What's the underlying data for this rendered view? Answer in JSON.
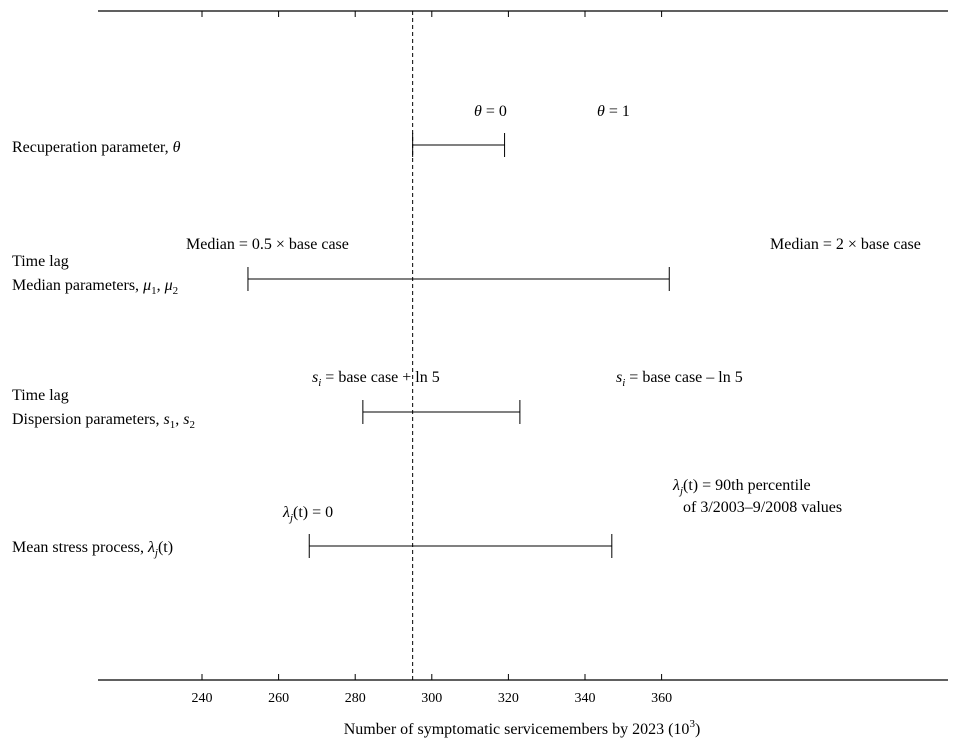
{
  "chart_data": {
    "type": "tornado",
    "title": "",
    "xlabel": "Number of symptomatic servicemembers by 2023 (10",
    "xlabel_exponent": "3",
    "xlabel_close": ")",
    "xlim": [
      220,
      378
    ],
    "xticks": [
      240,
      260,
      280,
      300,
      320,
      340,
      360
    ],
    "base_case": 295,
    "bars": [
      {
        "id": "recuperation",
        "label_lines": [
          {
            "main": "Recuperation parameter, ",
            "sym": "θ",
            "sub": "",
            "rest": ""
          }
        ],
        "low": 295,
        "high": 319,
        "low_label": {
          "sym": "θ",
          "rest": " = 0"
        },
        "high_label": {
          "sym": "θ",
          "rest": " = 1"
        }
      },
      {
        "id": "median",
        "label_lines": [
          {
            "main": "Time lag",
            "sym": "",
            "sub": "",
            "rest": ""
          },
          {
            "main": "Median parameters, ",
            "sym": "μ",
            "sub": "1",
            "rest": ", ",
            "sym2": "μ",
            "sub2": "2"
          }
        ],
        "low": 252,
        "high": 362,
        "low_label": {
          "text": "Median = 0.5 × base case"
        },
        "high_label": {
          "text": "Median = 2 × base case"
        }
      },
      {
        "id": "dispersion",
        "label_lines": [
          {
            "main": "Time lag",
            "sym": "",
            "sub": "",
            "rest": ""
          },
          {
            "main": "Dispersion parameters, ",
            "sym": "s",
            "sub": "1",
            "rest": ", ",
            "sym2": "s",
            "sub2": "2"
          }
        ],
        "low": 282,
        "high": 323,
        "low_label": {
          "sym": "s",
          "sub": "i",
          "rest": " = base case + ln 5"
        },
        "high_label": {
          "sym": "s",
          "sub": "i",
          "rest": " = base case – ln 5"
        }
      },
      {
        "id": "stress",
        "label_lines": [
          {
            "main": "Mean stress process, ",
            "sym": "λ",
            "sub": "j",
            "rest": "(t)"
          }
        ],
        "low": 268,
        "high": 347,
        "low_label": {
          "sym": "λ",
          "sub": "j",
          "rest": "(t) = 0"
        },
        "high_label": {
          "sym": "λ",
          "sub": "j",
          "rest": "(t) = 90th percentile",
          "line2": "of 3/2003–9/2008 values"
        }
      }
    ]
  }
}
